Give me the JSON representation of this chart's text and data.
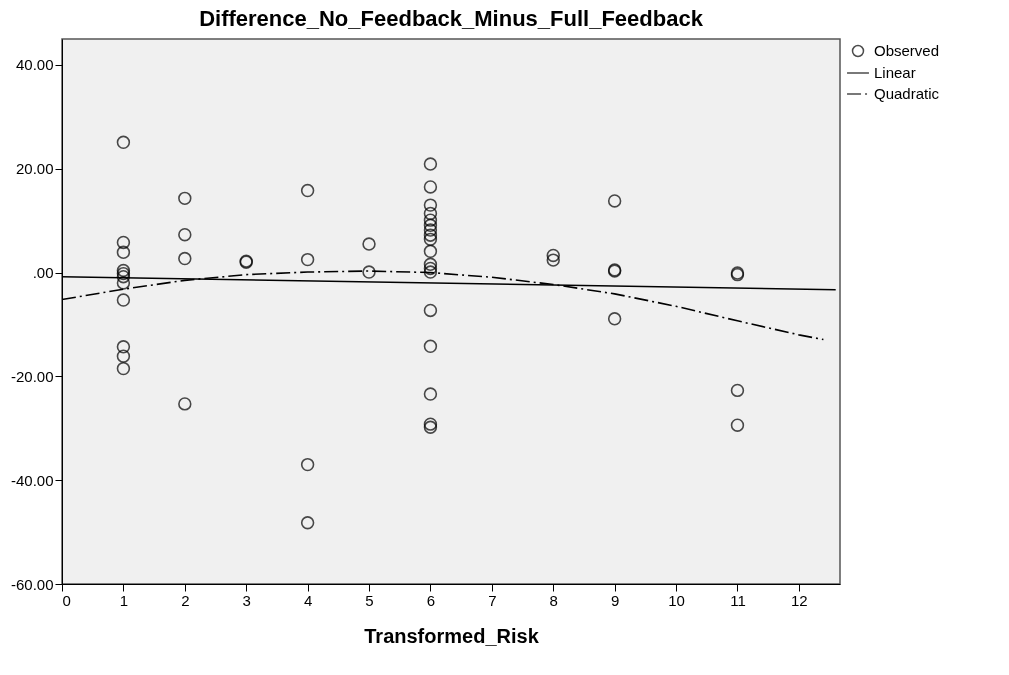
{
  "chart_data": {
    "type": "scatter",
    "title": "Difference_No_Feedback_Minus_Full_Feedback",
    "xlabel": "Transformed_Risk",
    "xlim": [
      0,
      12.67
    ],
    "xticks": [
      0,
      1,
      2,
      3,
      4,
      5,
      6,
      7,
      8,
      9,
      10,
      11,
      12
    ],
    "ylim": [
      -60,
      45
    ],
    "yticks": [
      {
        "value": -60,
        "label": "-60.00"
      },
      {
        "value": -40,
        "label": "-40.00"
      },
      {
        "value": -20,
        "label": "-20.00"
      },
      {
        "value": 0,
        "label": ".00"
      },
      {
        "value": 20,
        "label": "20.00"
      },
      {
        "value": 40,
        "label": "40.00"
      }
    ],
    "grid": false,
    "legend": "top right",
    "series": [
      {
        "name": "Observed",
        "type": "scatter",
        "marker": "circle",
        "color": "#000000",
        "x": [
          1,
          1,
          1,
          1,
          1,
          1,
          1,
          1,
          1,
          1,
          1,
          2,
          2,
          2,
          2,
          3,
          3,
          4,
          4,
          4,
          4,
          5,
          5,
          6,
          6,
          6,
          6,
          6,
          6,
          6,
          6,
          6,
          6,
          6,
          6,
          6,
          6,
          6,
          6,
          6,
          6,
          8,
          8,
          9,
          9,
          9,
          9,
          11,
          11,
          11,
          11
        ],
        "values": [
          25.1,
          5.8,
          3.9,
          0.4,
          -0.2,
          -0.8,
          -2.0,
          -5.3,
          -14.3,
          -16.1,
          -18.5,
          14.3,
          7.3,
          2.7,
          -25.3,
          2.0,
          2.2,
          15.8,
          2.5,
          -37.0,
          -48.2,
          5.5,
          0.1,
          20.9,
          16.5,
          13.0,
          11.4,
          10.1,
          9.1,
          8.2,
          7.2,
          6.4,
          4.1,
          1.6,
          0.8,
          0.1,
          -7.3,
          -14.2,
          -23.4,
          -29.2,
          -29.8,
          3.3,
          2.4,
          13.8,
          0.3,
          0.5,
          -8.9,
          -0.1,
          -0.4,
          -22.7,
          -29.4
        ]
      },
      {
        "name": "Linear",
        "type": "line",
        "line_style": "solid",
        "color": "#000000",
        "x": [
          0,
          12.6
        ],
        "values": [
          -0.8,
          -3.3
        ]
      },
      {
        "name": "Quadratic",
        "type": "line",
        "line_style": "dashed",
        "color": "#000000",
        "x": [
          0,
          1,
          2,
          3,
          4,
          5,
          6,
          7,
          8,
          9,
          10,
          11,
          12,
          12.4
        ],
        "values": [
          -5.2,
          -3.2,
          -1.5,
          -0.4,
          0.1,
          0.3,
          0.0,
          -0.9,
          -2.3,
          -4.1,
          -6.5,
          -9.3,
          -12.0,
          -12.9
        ]
      }
    ]
  }
}
